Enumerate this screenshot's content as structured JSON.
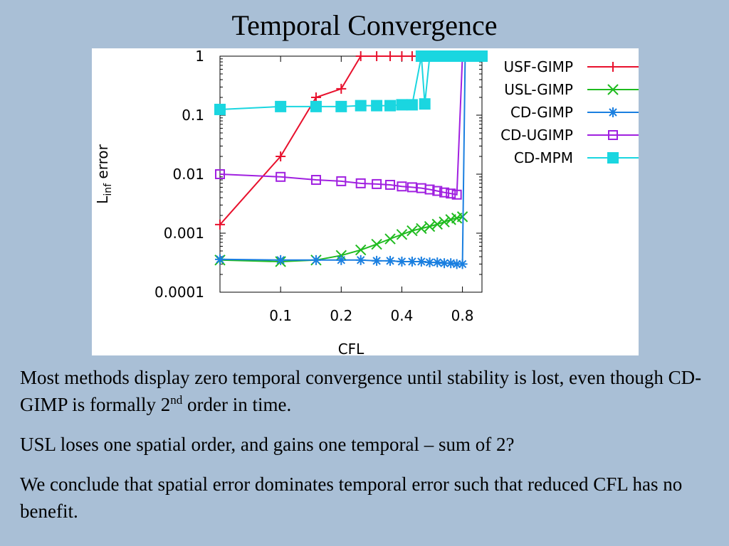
{
  "slide": {
    "title": "Temporal Convergence",
    "para1_a": "Most methods display zero temporal convergence until stability is lost, even though CD-GIMP is formally 2",
    "para1_sup": "nd",
    "para1_b": " order in time.",
    "para2": "USL loses one spatial order, and gains one temporal – sum of 2?",
    "para3": "We conclude that spatial error dominates temporal error such that reduced CFL has no benefit."
  },
  "chart_data": {
    "type": "line",
    "title": "",
    "xlabel": "CFL",
    "ylabel": "L",
    "ylabel_sub": "inf",
    "ylabel_rest": " error",
    "xscale": "log",
    "yscale": "log",
    "xlim": [
      0.05,
      1.0
    ],
    "ylim": [
      0.0001,
      1
    ],
    "xticks": [
      {
        "value": 0.1,
        "label": "0.1"
      },
      {
        "value": 0.2,
        "label": "0.2"
      },
      {
        "value": 0.4,
        "label": "0.4"
      },
      {
        "value": 0.8,
        "label": "0.8"
      }
    ],
    "yticks": [
      {
        "value": 1,
        "label": "1"
      },
      {
        "value": 0.1,
        "label": "0.1"
      },
      {
        "value": 0.01,
        "label": "0.01"
      },
      {
        "value": 0.001,
        "label": "0.001"
      },
      {
        "value": 0.0001,
        "label": "0.0001"
      }
    ],
    "legend_position": "outside-right",
    "grid": false,
    "series": [
      {
        "name": "USF-GIMP",
        "color": "#e8112d",
        "marker": "plus",
        "x": [
          0.05,
          0.1,
          0.15,
          0.2,
          0.25,
          0.3,
          0.35,
          0.4,
          0.45,
          0.5
        ],
        "y": [
          0.0014,
          0.02,
          0.2,
          0.28,
          1,
          1,
          1,
          1,
          1,
          1
        ]
      },
      {
        "name": "USL-GIMP",
        "color": "#1fbb1f",
        "marker": "x",
        "x": [
          0.05,
          0.1,
          0.15,
          0.2,
          0.25,
          0.3,
          0.35,
          0.4,
          0.45,
          0.5,
          0.55,
          0.6,
          0.65,
          0.7,
          0.75,
          0.8
        ],
        "y": [
          0.00035,
          0.00033,
          0.00035,
          0.00042,
          0.00052,
          0.00065,
          0.0008,
          0.00095,
          0.0011,
          0.0012,
          0.0013,
          0.00142,
          0.00155,
          0.0017,
          0.0018,
          0.0019
        ]
      },
      {
        "name": "CD-GIMP",
        "color": "#1a7fe0",
        "marker": "asterisk",
        "x": [
          0.05,
          0.1,
          0.15,
          0.2,
          0.25,
          0.3,
          0.35,
          0.4,
          0.45,
          0.5,
          0.55,
          0.6,
          0.65,
          0.7,
          0.75,
          0.8,
          0.825
        ],
        "y": [
          0.00036,
          0.00035,
          0.00035,
          0.00035,
          0.00035,
          0.00034,
          0.00034,
          0.00033,
          0.00033,
          0.00033,
          0.00032,
          0.00032,
          0.00031,
          0.00031,
          0.0003,
          0.0003,
          1
        ]
      },
      {
        "name": "CD-UGIMP",
        "color": "#a020e0",
        "marker": "open-square",
        "x": [
          0.05,
          0.1,
          0.15,
          0.2,
          0.25,
          0.3,
          0.35,
          0.4,
          0.45,
          0.5,
          0.55,
          0.6,
          0.65,
          0.7,
          0.75,
          0.8
        ],
        "y": [
          0.01,
          0.009,
          0.008,
          0.0076,
          0.007,
          0.0068,
          0.0066,
          0.0062,
          0.006,
          0.0058,
          0.0055,
          0.0052,
          0.0049,
          0.0047,
          0.0045,
          1
        ]
      },
      {
        "name": "CD-MPM",
        "color": "#1ad6e0",
        "marker": "filled-square",
        "x": [
          0.05,
          0.1,
          0.15,
          0.2,
          0.25,
          0.3,
          0.35,
          0.4,
          0.45,
          0.5,
          0.52,
          0.55,
          0.6,
          0.65,
          0.7,
          0.75,
          0.8,
          0.9,
          1.0
        ],
        "y": [
          0.125,
          0.14,
          0.14,
          0.14,
          0.145,
          0.145,
          0.145,
          0.15,
          0.15,
          1,
          0.155,
          1,
          1,
          1,
          1,
          1,
          1,
          1,
          1
        ]
      }
    ]
  }
}
